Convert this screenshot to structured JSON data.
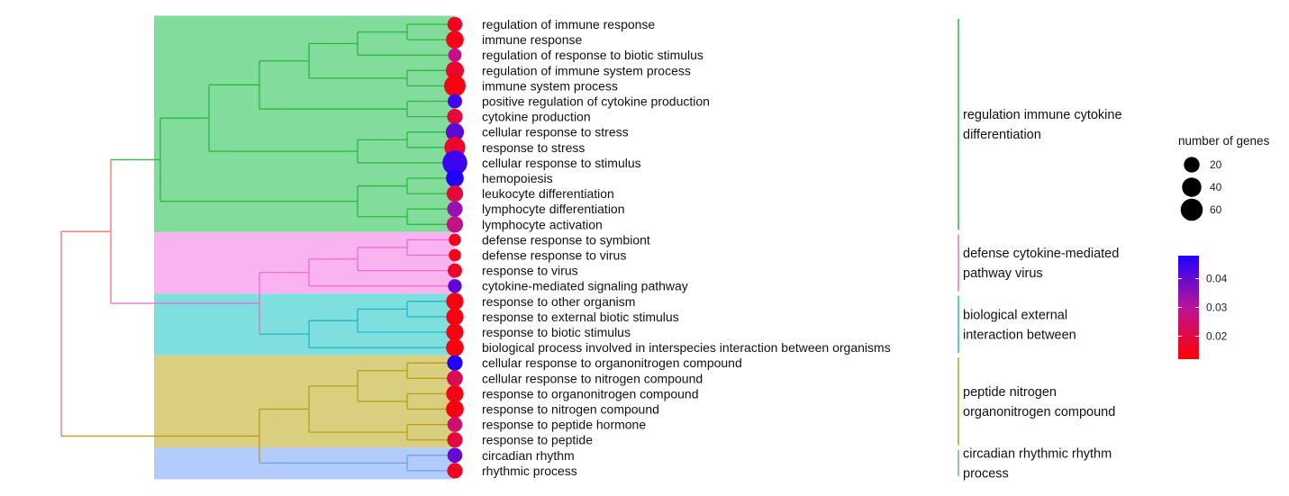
{
  "chart_data": {
    "type": "dendrogram-dotplot",
    "terms": [
      {
        "label": "regulation of immune response",
        "genes": 14,
        "p": 0.016
      },
      {
        "label": "immune response",
        "genes": 26,
        "p": 0.015
      },
      {
        "label": "regulation of response to biotic stimulus",
        "genes": 9,
        "p": 0.028
      },
      {
        "label": "regulation of immune system process",
        "genes": 28,
        "p": 0.017
      },
      {
        "label": "immune system process",
        "genes": 48,
        "p": 0.014
      },
      {
        "label": "positive regulation of cytokine production",
        "genes": 12,
        "p": 0.044
      },
      {
        "label": "cytokine production",
        "genes": 16,
        "p": 0.019
      },
      {
        "label": "cellular response to stress",
        "genes": 28,
        "p": 0.041
      },
      {
        "label": "response to stress",
        "genes": 44,
        "p": 0.017
      },
      {
        "label": "cellular response to stimulus",
        "genes": 72,
        "p": 0.045
      },
      {
        "label": "hemopoiesis",
        "genes": 26,
        "p": 0.048
      },
      {
        "label": "leukocyte differentiation",
        "genes": 20,
        "p": 0.019
      },
      {
        "label": "lymphocyte differentiation",
        "genes": 16,
        "p": 0.034
      },
      {
        "label": "lymphocyte activation",
        "genes": 20,
        "p": 0.028
      },
      {
        "label": "defense response to symbiont",
        "genes": 6,
        "p": 0.015
      },
      {
        "label": "defense response to virus",
        "genes": 6,
        "p": 0.015
      },
      {
        "label": "response to virus",
        "genes": 12,
        "p": 0.017
      },
      {
        "label": "cytokine-mediated signaling pathway",
        "genes": 10,
        "p": 0.041
      },
      {
        "label": "response to other organism",
        "genes": 24,
        "p": 0.014
      },
      {
        "label": "response to external biotic stimulus",
        "genes": 24,
        "p": 0.014
      },
      {
        "label": "response to biotic stimulus",
        "genes": 24,
        "p": 0.014
      },
      {
        "label": "biological process involved in interspecies interaction between organisms",
        "genes": 26,
        "p": 0.014
      },
      {
        "label": "cellular response to organonitrogen compound",
        "genes": 16,
        "p": 0.048
      },
      {
        "label": "cellular response to nitrogen compound",
        "genes": 18,
        "p": 0.022
      },
      {
        "label": "response to organonitrogen compound",
        "genes": 24,
        "p": 0.015
      },
      {
        "label": "response to nitrogen compound",
        "genes": 26,
        "p": 0.014
      },
      {
        "label": "response to peptide hormone",
        "genes": 14,
        "p": 0.025
      },
      {
        "label": "response to peptide",
        "genes": 16,
        "p": 0.019
      },
      {
        "label": "circadian rhythm",
        "genes": 14,
        "p": 0.04
      },
      {
        "label": "rhythmic process",
        "genes": 16,
        "p": 0.016
      }
    ],
    "clusters": [
      {
        "label_lines": [
          "regulation immune cytokine",
          "differentiation"
        ],
        "start": 0,
        "end": 13,
        "fill": "#82DC9B",
        "line": "#2CB845"
      },
      {
        "label_lines": [
          "defense cytokine-mediated",
          "pathway virus"
        ],
        "start": 14,
        "end": 17,
        "fill": "#F8B3F0",
        "line": "#E86FD9"
      },
      {
        "label_lines": [
          "biological external",
          "interaction between"
        ],
        "start": 18,
        "end": 21,
        "fill": "#7FDFDF",
        "line": "#1EB6C8"
      },
      {
        "label_lines": [
          "peptide nitrogen",
          "organonitrogen compound"
        ],
        "start": 22,
        "end": 27,
        "fill": "#DACE7F",
        "line": "#B5A11A"
      },
      {
        "label_lines": [
          "circadian rhythmic rhythm",
          "process"
        ],
        "start": 28,
        "end": 29,
        "fill": "#B3CCFE",
        "line": "#6FA0F0"
      }
    ],
    "tree": {
      "root_color": "#F0766D",
      "top_color": "#F0766D"
    },
    "size_legend": {
      "title": "number of genes",
      "breaks": [
        20,
        40,
        60
      ]
    },
    "color_legend": {
      "breaks": [
        0.04,
        0.03,
        0.02
      ],
      "min": 0.012,
      "max": 0.048,
      "low_color": "#FF0000",
      "mid_color": "#BB1499",
      "high_color": "#2200FF"
    }
  }
}
